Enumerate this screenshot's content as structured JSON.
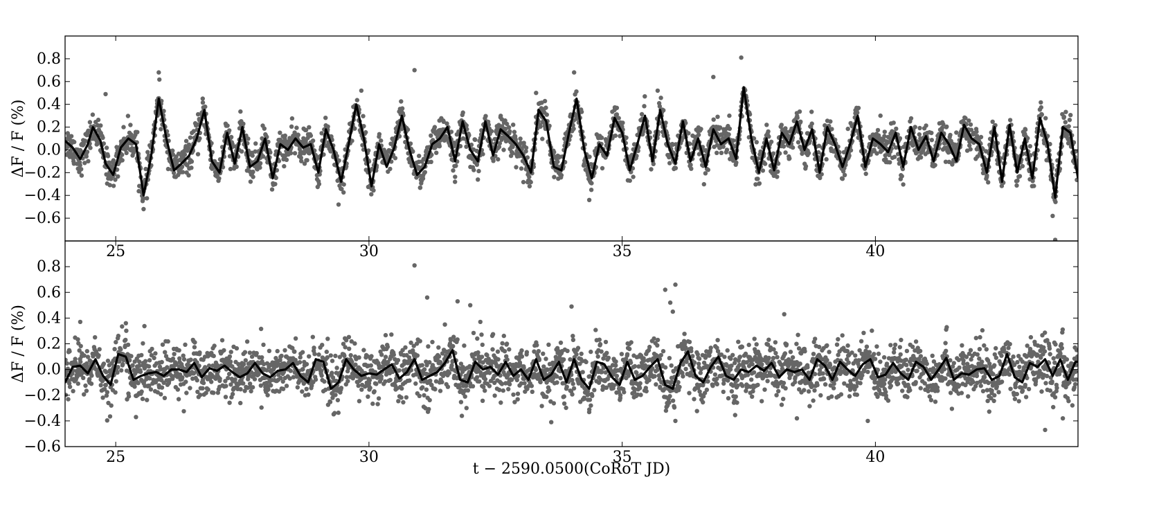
{
  "chart_data": [
    {
      "type": "scatter",
      "panel": "top",
      "ylabel": "ΔF / F (%)",
      "xlabel": "",
      "xlim": [
        24.0,
        44.0
      ],
      "ylim": [
        -0.8,
        1.0
      ],
      "xticks": [
        25,
        30,
        35,
        40
      ],
      "yticks": [
        0.8,
        0.6,
        0.4,
        0.2,
        0.0,
        -0.2,
        -0.4,
        -0.6
      ],
      "ytick_labels": [
        "0.8",
        "0.6",
        "0.4",
        "0.2",
        "0.0",
        "−0.2",
        "−0.4",
        "−0.6"
      ],
      "xtick_labels": [
        "25",
        "30",
        "35",
        "40"
      ],
      "grid": false,
      "scatter_color": "#666666",
      "line_color": "#000000",
      "series": [
        {
          "kind": "points",
          "scatter_sigma": 0.07,
          "outliers": [
            {
              "x": 25.85,
              "y": 0.68
            },
            {
              "x": 30.9,
              "y": 0.7
            },
            {
              "x": 34.05,
              "y": 0.68
            },
            {
              "x": 37.35,
              "y": 0.81
            },
            {
              "x": 36.8,
              "y": 0.64
            },
            {
              "x": 25.55,
              "y": -0.52
            },
            {
              "x": 29.4,
              "y": -0.48
            },
            {
              "x": 34.35,
              "y": -0.44
            },
            {
              "x": 43.5,
              "y": -0.58
            },
            {
              "x": 43.55,
              "y": -0.79
            },
            {
              "x": 24.8,
              "y": 0.49
            },
            {
              "x": 29.85,
              "y": 0.52
            },
            {
              "x": 33.3,
              "y": 0.5
            },
            {
              "x": 35.7,
              "y": 0.52
            },
            {
              "x": 40.1,
              "y": 0.3
            }
          ]
        },
        {
          "kind": "line",
          "x": [
            24.0,
            24.15,
            24.3,
            24.45,
            24.55,
            24.7,
            24.8,
            24.95,
            25.1,
            25.25,
            25.4,
            25.55,
            25.7,
            25.85,
            26.0,
            26.15,
            26.3,
            26.45,
            26.6,
            26.75,
            26.9,
            27.05,
            27.2,
            27.35,
            27.5,
            27.65,
            27.8,
            27.95,
            28.1,
            28.25,
            28.4,
            28.55,
            28.7,
            28.85,
            29.0,
            29.15,
            29.3,
            29.45,
            29.6,
            29.75,
            29.9,
            30.05,
            30.2,
            30.35,
            30.5,
            30.65,
            30.8,
            30.95,
            31.1,
            31.25,
            31.4,
            31.55,
            31.7,
            31.85,
            32.0,
            32.15,
            32.3,
            32.45,
            32.6,
            32.75,
            32.9,
            33.05,
            33.2,
            33.35,
            33.5,
            33.65,
            33.8,
            33.95,
            34.1,
            34.25,
            34.4,
            34.55,
            34.7,
            34.85,
            35.0,
            35.15,
            35.3,
            35.45,
            35.6,
            35.75,
            35.9,
            36.05,
            36.2,
            36.35,
            36.5,
            36.65,
            36.8,
            36.95,
            37.1,
            37.25,
            37.4,
            37.55,
            37.7,
            37.85,
            38.0,
            38.15,
            38.3,
            38.45,
            38.6,
            38.75,
            38.9,
            39.05,
            39.2,
            39.35,
            39.5,
            39.65,
            39.8,
            39.95,
            40.1,
            40.25,
            40.4,
            40.55,
            40.7,
            40.85,
            41.0,
            41.15,
            41.3,
            41.45,
            41.6,
            41.75,
            41.9,
            42.05,
            42.2,
            42.35,
            42.5,
            42.65,
            42.8,
            42.95,
            43.1,
            43.25,
            43.4,
            43.55,
            43.7,
            43.85,
            44.0
          ],
          "y": [
            0.08,
            0.02,
            -0.08,
            0.05,
            0.2,
            0.08,
            -0.12,
            -0.22,
            0.02,
            0.1,
            0.05,
            -0.4,
            -0.05,
            0.45,
            0.1,
            -0.18,
            -0.12,
            -0.05,
            0.1,
            0.35,
            -0.1,
            -0.2,
            0.15,
            -0.12,
            0.2,
            -0.15,
            -0.1,
            0.1,
            -0.25,
            0.05,
            0.0,
            0.1,
            0.02,
            0.05,
            -0.2,
            0.18,
            0.0,
            -0.28,
            0.05,
            0.4,
            0.1,
            -0.32,
            0.05,
            -0.15,
            0.02,
            0.3,
            0.0,
            -0.22,
            -0.15,
            0.05,
            0.1,
            0.2,
            -0.1,
            0.25,
            0.0,
            -0.1,
            0.25,
            -0.05,
            0.18,
            0.12,
            0.05,
            -0.05,
            -0.2,
            0.35,
            0.25,
            -0.15,
            -0.18,
            0.15,
            0.45,
            0.0,
            -0.25,
            0.05,
            -0.05,
            0.28,
            0.15,
            -0.18,
            0.05,
            0.3,
            -0.1,
            0.35,
            0.05,
            -0.12,
            0.25,
            -0.1,
            0.1,
            -0.15,
            0.18,
            0.05,
            0.1,
            -0.08,
            0.55,
            0.1,
            -0.2,
            0.1,
            -0.18,
            0.15,
            0.05,
            0.25,
            0.0,
            0.18,
            -0.2,
            0.2,
            0.05,
            -0.15,
            0.05,
            0.3,
            -0.15,
            0.1,
            0.05,
            -0.02,
            0.15,
            -0.15,
            0.2,
            0.0,
            0.12,
            -0.1,
            0.15,
            0.05,
            -0.1,
            0.22,
            0.1,
            0.05,
            -0.2,
            0.2,
            -0.28,
            0.22,
            -0.2,
            0.1,
            -0.25,
            0.28,
            0.05,
            -0.42,
            0.2,
            0.15,
            -0.25
          ]
        }
      ]
    },
    {
      "type": "scatter",
      "panel": "bottom",
      "ylabel": "ΔF / F (%)",
      "xlabel": "t − 2590.0500(CoRoT JD)",
      "xlim": [
        24.0,
        44.0
      ],
      "ylim": [
        -0.6,
        1.0
      ],
      "xticks": [
        25,
        30,
        35,
        40
      ],
      "yticks": [
        0.8,
        0.6,
        0.4,
        0.2,
        0.0,
        -0.2,
        -0.4,
        -0.6
      ],
      "ytick_labels": [
        "0.8",
        "0.6",
        "0.4",
        "0.2",
        "0.0",
        "−0.2",
        "−0.4",
        "−0.6"
      ],
      "xtick_labels": [
        "25",
        "30",
        "35",
        "40"
      ],
      "grid": false,
      "scatter_color": "#666666",
      "line_color": "#000000",
      "series": [
        {
          "kind": "points",
          "scatter_sigma": 0.1,
          "outliers": [
            {
              "x": 30.9,
              "y": 0.81
            },
            {
              "x": 31.15,
              "y": 0.56
            },
            {
              "x": 31.75,
              "y": 0.53
            },
            {
              "x": 32.0,
              "y": 0.5
            },
            {
              "x": 34.0,
              "y": 0.49
            },
            {
              "x": 35.85,
              "y": 0.62
            },
            {
              "x": 36.05,
              "y": 0.66
            },
            {
              "x": 35.95,
              "y": 0.52
            },
            {
              "x": 36.0,
              "y": 0.45
            },
            {
              "x": 38.2,
              "y": 0.43
            },
            {
              "x": 24.3,
              "y": 0.37
            },
            {
              "x": 25.2,
              "y": 0.36
            },
            {
              "x": 31.5,
              "y": 0.35
            },
            {
              "x": 32.2,
              "y": 0.37
            },
            {
              "x": 43.35,
              "y": -0.47
            },
            {
              "x": 43.7,
              "y": -0.38
            },
            {
              "x": 39.85,
              "y": -0.4
            },
            {
              "x": 38.45,
              "y": -0.38
            },
            {
              "x": 36.05,
              "y": -0.4
            },
            {
              "x": 33.6,
              "y": -0.41
            },
            {
              "x": 25.4,
              "y": -0.37
            }
          ]
        },
        {
          "kind": "line",
          "x": [
            24.0,
            24.15,
            24.3,
            24.45,
            24.6,
            24.75,
            24.9,
            25.05,
            25.2,
            25.35,
            25.5,
            25.65,
            25.8,
            25.95,
            26.1,
            26.25,
            26.4,
            26.55,
            26.7,
            26.85,
            27.0,
            27.15,
            27.3,
            27.45,
            27.6,
            27.75,
            27.9,
            28.05,
            28.2,
            28.35,
            28.5,
            28.65,
            28.8,
            28.95,
            29.1,
            29.25,
            29.4,
            29.55,
            29.7,
            29.85,
            30.0,
            30.15,
            30.3,
            30.45,
            30.6,
            30.75,
            30.9,
            31.05,
            31.2,
            31.35,
            31.5,
            31.65,
            31.8,
            31.95,
            32.1,
            32.25,
            32.4,
            32.55,
            32.7,
            32.85,
            33.0,
            33.15,
            33.3,
            33.45,
            33.6,
            33.75,
            33.9,
            34.05,
            34.2,
            34.35,
            34.5,
            34.65,
            34.8,
            34.95,
            35.1,
            35.25,
            35.4,
            35.55,
            35.7,
            35.85,
            36.0,
            36.15,
            36.3,
            36.45,
            36.6,
            36.75,
            36.9,
            37.05,
            37.2,
            37.35,
            37.5,
            37.65,
            37.8,
            37.95,
            38.1,
            38.25,
            38.4,
            38.55,
            38.7,
            38.85,
            39.0,
            39.15,
            39.3,
            39.45,
            39.6,
            39.75,
            39.9,
            40.05,
            40.2,
            40.35,
            40.5,
            40.65,
            40.8,
            40.95,
            41.1,
            41.25,
            41.4,
            41.55,
            41.7,
            41.85,
            42.0,
            42.15,
            42.3,
            42.45,
            42.6,
            42.75,
            42.9,
            43.05,
            43.2,
            43.35,
            43.5,
            43.65,
            43.8,
            43.95,
            44.0
          ],
          "y": [
            -0.1,
            0.02,
            0.03,
            -0.03,
            0.08,
            -0.05,
            -0.12,
            0.12,
            0.1,
            -0.08,
            -0.05,
            -0.03,
            -0.02,
            -0.05,
            0.0,
            0.0,
            -0.02,
            0.05,
            -0.06,
            0.01,
            -0.01,
            0.03,
            -0.02,
            -0.06,
            -0.03,
            0.05,
            -0.03,
            -0.06,
            -0.01,
            0.0,
            0.05,
            -0.05,
            -0.1,
            0.08,
            0.06,
            -0.15,
            -0.1,
            0.08,
            0.0,
            -0.05,
            -0.03,
            -0.04,
            0.0,
            0.04,
            -0.07,
            -0.02,
            0.08,
            -0.08,
            -0.05,
            -0.02,
            0.05,
            0.15,
            -0.08,
            -0.1,
            0.06,
            0.0,
            0.02,
            -0.04,
            0.06,
            -0.05,
            0.0,
            -0.08,
            0.08,
            -0.08,
            -0.04,
            0.06,
            -0.1,
            0.08,
            -0.08,
            -0.15,
            0.06,
            0.04,
            -0.06,
            -0.12,
            0.06,
            -0.08,
            -0.05,
            0.02,
            0.08,
            -0.12,
            -0.15,
            0.05,
            0.14,
            -0.05,
            -0.1,
            0.02,
            0.1,
            -0.05,
            -0.08,
            0.0,
            -0.02,
            0.03,
            -0.01,
            0.05,
            -0.06,
            0.0,
            -0.02,
            0.0,
            -0.08,
            0.08,
            0.03,
            -0.08,
            0.06,
            0.0,
            -0.05,
            0.04,
            0.08,
            -0.06,
            -0.04,
            0.05,
            -0.03,
            -0.08,
            0.06,
            0.02,
            -0.08,
            0.0,
            0.09,
            -0.08,
            -0.03,
            -0.04,
            0.0,
            0.01,
            -0.08,
            -0.05,
            0.12,
            -0.06,
            -0.1,
            0.05,
            0.02,
            0.08,
            -0.05,
            0.08,
            -0.08,
            0.06,
            0.06
          ]
        }
      ]
    }
  ]
}
